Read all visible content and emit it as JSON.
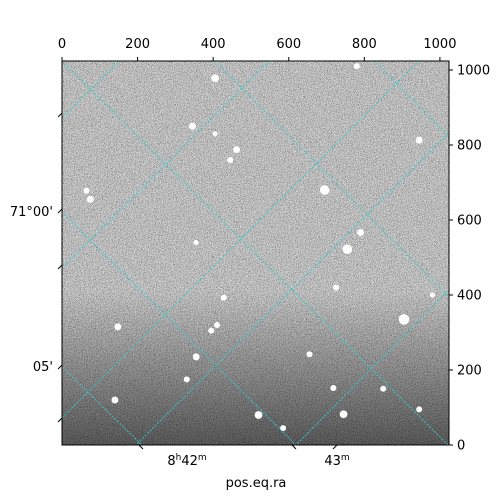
{
  "chart_data": {
    "type": "image",
    "pixel_axes": {
      "x_range": [
        0,
        1024
      ],
      "y_range": [
        0,
        1024
      ],
      "top_ticks": [
        "0",
        "200",
        "400",
        "600",
        "800",
        "1000"
      ],
      "top_tick_values": [
        0,
        200,
        400,
        600,
        800,
        1000
      ],
      "right_ticks": [
        "0",
        "200",
        "400",
        "600",
        "800",
        "1000"
      ],
      "right_tick_values": [
        0,
        200,
        400,
        600,
        800,
        1000
      ]
    },
    "world_axes": {
      "xlabel": "pos.eq.ra",
      "bottom_ticks": [
        {
          "label": "8h42m",
          "major": "8",
          "sup": "h",
          "rest": "42",
          "sup2": "m"
        },
        {
          "label": "43m",
          "major": "43",
          "sup": "m"
        }
      ],
      "left_ticks": [
        {
          "label": "71°00'"
        },
        {
          "label": "05'"
        }
      ]
    },
    "grid": true,
    "grid_color": "#33cccc",
    "image_colormap": "gray",
    "stars": [
      {
        "x": 405,
        "y": 978,
        "r": 6
      },
      {
        "x": 780,
        "y": 1010,
        "r": 4
      },
      {
        "x": 345,
        "y": 850,
        "r": 5
      },
      {
        "x": 462,
        "y": 788,
        "r": 5
      },
      {
        "x": 445,
        "y": 760,
        "r": 4
      },
      {
        "x": 405,
        "y": 830,
        "r": 3
      },
      {
        "x": 695,
        "y": 680,
        "r": 8
      },
      {
        "x": 65,
        "y": 678,
        "r": 4
      },
      {
        "x": 75,
        "y": 655,
        "r": 5
      },
      {
        "x": 790,
        "y": 567,
        "r": 5
      },
      {
        "x": 755,
        "y": 522,
        "r": 8
      },
      {
        "x": 945,
        "y": 813,
        "r": 5
      },
      {
        "x": 725,
        "y": 420,
        "r": 4
      },
      {
        "x": 905,
        "y": 335,
        "r": 9
      },
      {
        "x": 428,
        "y": 393,
        "r": 4
      },
      {
        "x": 410,
        "y": 320,
        "r": 4
      },
      {
        "x": 395,
        "y": 305,
        "r": 4
      },
      {
        "x": 148,
        "y": 315,
        "r": 5
      },
      {
        "x": 355,
        "y": 235,
        "r": 5
      },
      {
        "x": 330,
        "y": 175,
        "r": 4
      },
      {
        "x": 140,
        "y": 120,
        "r": 5
      },
      {
        "x": 520,
        "y": 80,
        "r": 6
      },
      {
        "x": 745,
        "y": 82,
        "r": 6
      },
      {
        "x": 655,
        "y": 242,
        "r": 4
      },
      {
        "x": 718,
        "y": 152,
        "r": 4
      },
      {
        "x": 850,
        "y": 150,
        "r": 4
      },
      {
        "x": 945,
        "y": 95,
        "r": 4
      },
      {
        "x": 980,
        "y": 400,
        "r": 3
      },
      {
        "x": 355,
        "y": 540,
        "r": 3
      },
      {
        "x": 585,
        "y": 45,
        "r": 4
      }
    ]
  }
}
